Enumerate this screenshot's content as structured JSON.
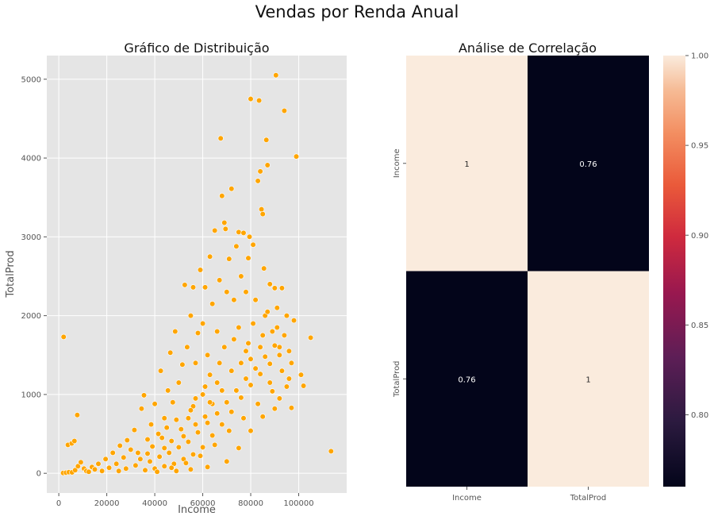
{
  "figure_title": "Vendas por Renda Anual",
  "chart_data": [
    {
      "type": "scatter",
      "title": "Gráfico de Distribuição",
      "xlabel": "Income",
      "ylabel": "TotalProd",
      "xlim": [
        -5000,
        120000
      ],
      "ylim": [
        -250,
        5300
      ],
      "xticks": [
        0,
        20000,
        40000,
        60000,
        80000,
        100000
      ],
      "yticks": [
        0,
        1000,
        2000,
        3000,
        4000,
        5000
      ],
      "grid": true,
      "background": "#e5e5e5",
      "point_color": "#ffa500",
      "points": [
        [
          2000,
          1730
        ],
        [
          7700,
          740
        ],
        [
          3800,
          360
        ],
        [
          5400,
          380
        ],
        [
          6500,
          410
        ],
        [
          113500,
          280
        ],
        [
          1800,
          5
        ],
        [
          3000,
          8
        ],
        [
          4200,
          15
        ],
        [
          5500,
          12
        ],
        [
          6800,
          40
        ],
        [
          8000,
          90
        ],
        [
          9200,
          140
        ],
        [
          10500,
          60
        ],
        [
          11500,
          30
        ],
        [
          12500,
          20
        ],
        [
          13800,
          80
        ],
        [
          15000,
          50
        ],
        [
          16500,
          120
        ],
        [
          18000,
          30
        ],
        [
          19500,
          180
        ],
        [
          21000,
          70
        ],
        [
          22500,
          260
        ],
        [
          24000,
          120
        ],
        [
          25500,
          350
        ],
        [
          27000,
          200
        ],
        [
          28500,
          420
        ],
        [
          30000,
          300
        ],
        [
          31500,
          550
        ],
        [
          33000,
          260
        ],
        [
          34500,
          820
        ],
        [
          35500,
          990
        ],
        [
          37000,
          430
        ],
        [
          38500,
          620
        ],
        [
          40000,
          880
        ],
        [
          41500,
          500
        ],
        [
          42500,
          1300
        ],
        [
          44000,
          700
        ],
        [
          45500,
          1050
        ],
        [
          46500,
          1530
        ],
        [
          47500,
          900
        ],
        [
          48500,
          1800
        ],
        [
          50000,
          1150
        ],
        [
          51500,
          1380
        ],
        [
          52500,
          2390
        ],
        [
          53500,
          1600
        ],
        [
          55000,
          2000
        ],
        [
          56000,
          2360
        ],
        [
          57000,
          1400
        ],
        [
          58000,
          1780
        ],
        [
          59000,
          2580
        ],
        [
          60000,
          1900
        ],
        [
          61000,
          2360
        ],
        [
          62000,
          1500
        ],
        [
          63000,
          2750
        ],
        [
          64000,
          2150
        ],
        [
          65000,
          3080
        ],
        [
          66000,
          1800
        ],
        [
          67000,
          2450
        ],
        [
          67500,
          4250
        ],
        [
          68000,
          3520
        ],
        [
          69000,
          3180
        ],
        [
          69500,
          3100
        ],
        [
          70000,
          2300
        ],
        [
          71000,
          2720
        ],
        [
          72000,
          3610
        ],
        [
          73000,
          2200
        ],
        [
          74000,
          2880
        ],
        [
          75000,
          3060
        ],
        [
          76000,
          2500
        ],
        [
          77000,
          3050
        ],
        [
          78000,
          2300
        ],
        [
          79000,
          2730
        ],
        [
          79500,
          3000
        ],
        [
          80000,
          4750
        ],
        [
          81000,
          2900
        ],
        [
          82000,
          2200
        ],
        [
          83000,
          3710
        ],
        [
          83500,
          4730
        ],
        [
          84000,
          3830
        ],
        [
          84500,
          3350
        ],
        [
          85000,
          3290
        ],
        [
          85500,
          2600
        ],
        [
          86000,
          2000
        ],
        [
          86500,
          4230
        ],
        [
          87000,
          3910
        ],
        [
          88000,
          2400
        ],
        [
          89000,
          1800
        ],
        [
          90000,
          2350
        ],
        [
          90500,
          5050
        ],
        [
          91000,
          2100
        ],
        [
          92000,
          1600
        ],
        [
          93000,
          2350
        ],
        [
          94000,
          4600
        ],
        [
          95000,
          2000
        ],
        [
          96000,
          1550
        ],
        [
          97000,
          830
        ],
        [
          98000,
          1940
        ],
        [
          99000,
          4020
        ],
        [
          101000,
          1250
        ],
        [
          102000,
          1110
        ],
        [
          105000,
          1720
        ],
        [
          38000,
          150
        ],
        [
          42000,
          210
        ],
        [
          46000,
          260
        ],
        [
          50000,
          330
        ],
        [
          54000,
          400
        ],
        [
          58000,
          520
        ],
        [
          62000,
          640
        ],
        [
          66000,
          760
        ],
        [
          70000,
          900
        ],
        [
          74000,
          1050
        ],
        [
          78000,
          1200
        ],
        [
          82000,
          1330
        ],
        [
          86000,
          1480
        ],
        [
          90000,
          1620
        ],
        [
          94000,
          1750
        ],
        [
          36000,
          40
        ],
        [
          40000,
          60
        ],
        [
          44000,
          90
        ],
        [
          48000,
          120
        ],
        [
          52000,
          180
        ],
        [
          56000,
          240
        ],
        [
          60000,
          330
        ],
        [
          64000,
          480
        ],
        [
          68000,
          620
        ],
        [
          72000,
          780
        ],
        [
          76000,
          960
        ],
        [
          80000,
          1120
        ],
        [
          84000,
          1260
        ],
        [
          88000,
          1390
        ],
        [
          92000,
          1500
        ],
        [
          41000,
          20
        ],
        [
          47000,
          70
        ],
        [
          53000,
          130
        ],
        [
          59000,
          220
        ],
        [
          65000,
          360
        ],
        [
          71000,
          540
        ],
        [
          77000,
          700
        ],
        [
          83000,
          880
        ],
        [
          89000,
          1040
        ],
        [
          57000,
          950
        ],
        [
          61000,
          1100
        ],
        [
          63000,
          1250
        ],
        [
          67000,
          1400
        ],
        [
          69000,
          1600
        ],
        [
          73000,
          1700
        ],
        [
          75000,
          1850
        ],
        [
          79000,
          1650
        ],
        [
          81000,
          1900
        ],
        [
          85000,
          1750
        ],
        [
          87000,
          2050
        ],
        [
          91000,
          1850
        ],
        [
          93000,
          1300
        ],
        [
          95000,
          1100
        ],
        [
          97000,
          1400
        ],
        [
          54000,
          700
        ],
        [
          56000,
          850
        ],
        [
          60000,
          1000
        ],
        [
          64000,
          880
        ],
        [
          66000,
          1150
        ],
        [
          68000,
          1050
        ],
        [
          72000,
          1300
        ],
        [
          76000,
          1400
        ],
        [
          78000,
          1550
        ],
        [
          80000,
          1450
        ],
        [
          84000,
          1600
        ],
        [
          88000,
          1150
        ],
        [
          92000,
          950
        ],
        [
          96000,
          1200
        ],
        [
          39000,
          340
        ],
        [
          43000,
          450
        ],
        [
          45000,
          580
        ],
        [
          49000,
          680
        ],
        [
          51000,
          560
        ],
        [
          55000,
          800
        ],
        [
          57000,
          620
        ],
        [
          61000,
          720
        ],
        [
          63000,
          900
        ],
        [
          49000,
          30
        ],
        [
          55000,
          50
        ],
        [
          62000,
          80
        ],
        [
          70000,
          150
        ],
        [
          75000,
          320
        ],
        [
          80000,
          540
        ],
        [
          85000,
          720
        ],
        [
          90000,
          820
        ],
        [
          25000,
          30
        ],
        [
          28000,
          60
        ],
        [
          32000,
          100
        ],
        [
          34000,
          180
        ],
        [
          37000,
          250
        ],
        [
          44000,
          320
        ],
        [
          47000,
          410
        ],
        [
          52000,
          470
        ]
      ]
    },
    {
      "type": "heatmap",
      "title": "Análise de Correlação",
      "rows": [
        "Income",
        "TotalProd"
      ],
      "columns": [
        "Income",
        "TotalProd"
      ],
      "values": [
        [
          1,
          0.76
        ],
        [
          0.76,
          1
        ]
      ],
      "annotations": [
        [
          "1",
          "0.76"
        ],
        [
          "0.76",
          "1"
        ]
      ],
      "colorbar": {
        "min": 0.76,
        "max": 1.0,
        "ticks": [
          0.8,
          0.85,
          0.9,
          0.95,
          1.0
        ],
        "tick_labels": [
          "0.80",
          "0.85",
          "0.90",
          "0.95",
          "1.00"
        ]
      },
      "colors": {
        "low": "#03051a",
        "high": "#faebdd"
      }
    }
  ]
}
